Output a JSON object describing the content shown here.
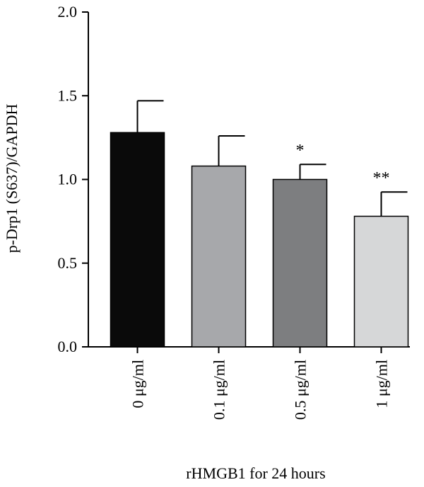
{
  "chart_data": {
    "type": "bar",
    "title": "",
    "xlabel": "rHMGB1 for 24 hours",
    "ylabel": "p-Drp1 (S637)/GAPDH",
    "ylim": [
      0,
      2.0
    ],
    "yticks": [
      0.0,
      0.5,
      1.0,
      1.5,
      2.0
    ],
    "ytick_labels": [
      "0.0",
      "0.5",
      "1.0",
      "1.5",
      "2.0"
    ],
    "grid": false,
    "legend": "none",
    "categories": [
      "0 μg/ml",
      "0.1 μg/ml",
      "0.5 μg/ml",
      "1 μg/ml"
    ],
    "values": [
      1.28,
      1.08,
      1.0,
      0.78
    ],
    "error_upper": [
      0.19,
      0.18,
      0.09,
      0.145
    ],
    "significance": [
      "",
      "",
      "*",
      "**"
    ],
    "bar_colors": [
      "#0a0a0a",
      "#a7a8ab",
      "#7d7e80",
      "#d6d7d8"
    ]
  }
}
